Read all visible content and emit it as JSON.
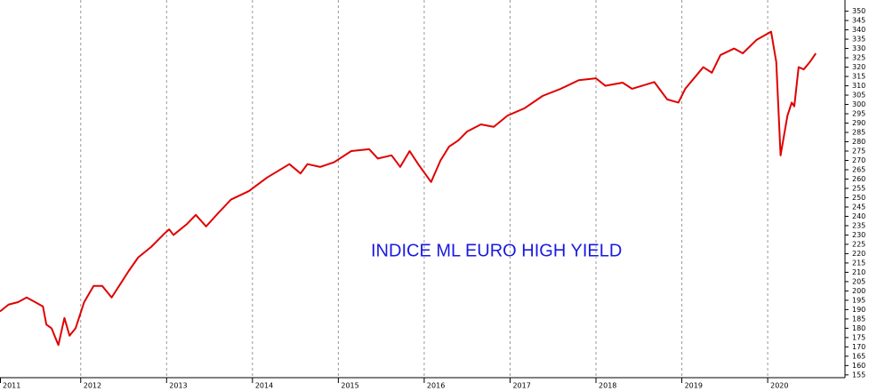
{
  "chart_data": {
    "type": "line",
    "annotation": "INDICE ML EURO HIGH YIELD",
    "x": [
      2011.06,
      2011.16,
      2011.27,
      2011.37,
      2011.47,
      2011.56,
      2011.6,
      2011.66,
      2011.74,
      2011.81,
      2011.87,
      2011.94,
      2012.04,
      2012.15,
      2012.25,
      2012.36,
      2012.46,
      2012.56,
      2012.67,
      2012.82,
      2012.98,
      2013.03,
      2013.08,
      2013.24,
      2013.34,
      2013.46,
      2013.6,
      2013.75,
      2013.96,
      2014.17,
      2014.43,
      2014.56,
      2014.64,
      2014.79,
      2014.95,
      2015.15,
      2015.36,
      2015.46,
      2015.62,
      2015.72,
      2015.83,
      2015.93,
      2016.08,
      2016.19,
      2016.29,
      2016.4,
      2016.5,
      2016.66,
      2016.81,
      2016.97,
      2017.17,
      2017.38,
      2017.59,
      2017.8,
      2018.0,
      2018.11,
      2018.31,
      2018.42,
      2018.68,
      2018.83,
      2018.96,
      2019.04,
      2019.25,
      2019.35,
      2019.45,
      2019.61,
      2019.71,
      2019.87,
      2020.04,
      2020.1,
      2020.15,
      2020.23,
      2020.28,
      2020.31,
      2020.36,
      2020.42,
      2020.49,
      2020.56
    ],
    "series": [
      {
        "color": "#e00000",
        "values": [
          189,
          192.7,
          194,
          196.5,
          194,
          191.7,
          182,
          180,
          171,
          185.5,
          176,
          180,
          194,
          202.7,
          202.7,
          196.5,
          203.6,
          210.8,
          218,
          223.6,
          231,
          233,
          230,
          236,
          240.8,
          234.6,
          241.7,
          249,
          253.6,
          260.8,
          268,
          263,
          268,
          266.5,
          269,
          275,
          276,
          271,
          272.7,
          266.5,
          275,
          268,
          258.4,
          270,
          277.4,
          280.8,
          285.5,
          289.3,
          288,
          294,
          298,
          304.6,
          308.4,
          313,
          314,
          310,
          311.7,
          308.4,
          312,
          302.7,
          301,
          308.4,
          320,
          317,
          326.5,
          330,
          327.4,
          334.6,
          339,
          322.7,
          272.7,
          294,
          301,
          299,
          320,
          318.8,
          322.7,
          327.4
        ]
      }
    ],
    "xlim": [
      2011.06,
      2020.9
    ],
    "xticks": [
      2011,
      2012,
      2013,
      2014,
      2015,
      2016,
      2017,
      2018,
      2019,
      2020
    ],
    "ylim": [
      153.5,
      356
    ],
    "yticks": [
      155,
      160,
      165,
      170,
      175,
      180,
      185,
      190,
      195,
      200,
      205,
      210,
      215,
      220,
      225,
      230,
      235,
      240,
      245,
      250,
      255,
      260,
      265,
      270,
      275,
      280,
      285,
      290,
      295,
      300,
      305,
      310,
      315,
      320,
      325,
      330,
      335,
      340,
      345,
      350
    ],
    "grid": "x"
  }
}
